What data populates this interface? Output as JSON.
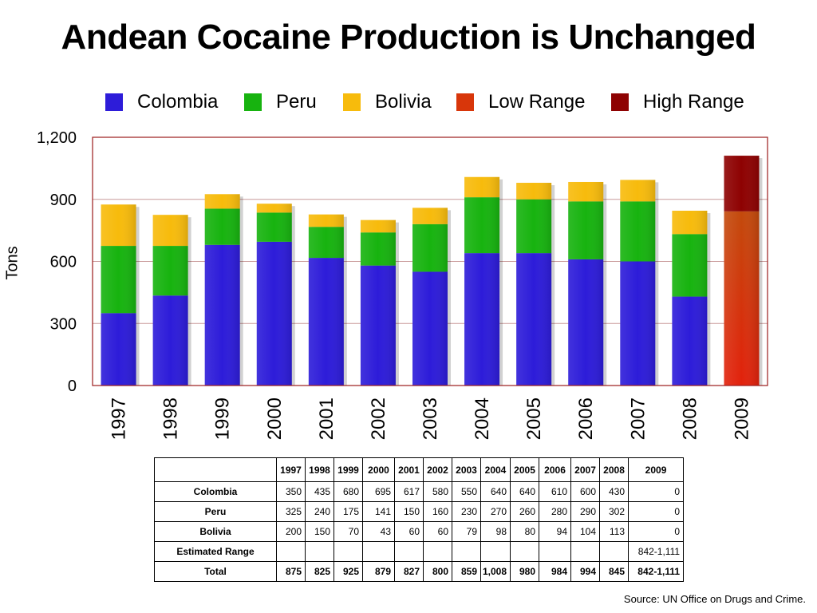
{
  "title": "Andean Cocaine Production is Unchanged",
  "colors": {
    "colombia": "#2d1cd9",
    "peru": "#17b30f",
    "bolivia": "#f7bb0c",
    "low_range": "#d8360a",
    "high_range": "#8e0202",
    "plot_border": "#9b1c1c",
    "grid": "#c99a9a"
  },
  "chart_data": {
    "type": "bar",
    "stacked": true,
    "title": "Andean Cocaine Production is Unchanged",
    "xlabel": "",
    "ylabel": "Tons",
    "ylim": [
      0,
      1200
    ],
    "yticks": [
      "0",
      "300",
      "600",
      "900",
      "1,200"
    ],
    "ytick_values": [
      0,
      300,
      600,
      900,
      1200
    ],
    "grid": true,
    "legend_position": "top",
    "categories": [
      "1997",
      "1998",
      "1999",
      "2000",
      "2001",
      "2002",
      "2003",
      "2004",
      "2005",
      "2006",
      "2007",
      "2008",
      "2009"
    ],
    "series": [
      {
        "name": "Colombia",
        "color": "#2d1cd9",
        "values": [
          350,
          435,
          680,
          695,
          617,
          580,
          550,
          640,
          640,
          610,
          600,
          430,
          0
        ]
      },
      {
        "name": "Peru",
        "color": "#17b30f",
        "values": [
          325,
          240,
          175,
          141,
          150,
          160,
          230,
          270,
          260,
          280,
          290,
          302,
          0
        ]
      },
      {
        "name": "Bolivia",
        "color": "#f7bb0c",
        "values": [
          200,
          150,
          70,
          43,
          60,
          60,
          79,
          98,
          80,
          94,
          104,
          113,
          0
        ]
      },
      {
        "name": "Low Range",
        "color": "#d8360a",
        "values": [
          0,
          0,
          0,
          0,
          0,
          0,
          0,
          0,
          0,
          0,
          0,
          0,
          842
        ]
      },
      {
        "name": "High Range",
        "color": "#8e0202",
        "values": [
          0,
          0,
          0,
          0,
          0,
          0,
          0,
          0,
          0,
          0,
          0,
          0,
          269
        ]
      }
    ]
  },
  "table": {
    "header": [
      "",
      "1997",
      "1998",
      "1999",
      "2000",
      "2001",
      "2002",
      "2003",
      "2004",
      "2005",
      "2006",
      "2007",
      "2008",
      "2009"
    ],
    "rows": [
      {
        "label": "Colombia",
        "cells": [
          "350",
          "435",
          "680",
          "695",
          "617",
          "580",
          "550",
          "640",
          "640",
          "610",
          "600",
          "430",
          "0"
        ]
      },
      {
        "label": "Peru",
        "cells": [
          "325",
          "240",
          "175",
          "141",
          "150",
          "160",
          "230",
          "270",
          "260",
          "280",
          "290",
          "302",
          "0"
        ]
      },
      {
        "label": "Bolivia",
        "cells": [
          "200",
          "150",
          "70",
          "43",
          "60",
          "60",
          "79",
          "98",
          "80",
          "94",
          "104",
          "113",
          "0"
        ]
      },
      {
        "label": "Estimated Range",
        "cells": [
          "",
          "",
          "",
          "",
          "",
          "",
          "",
          "",
          "",
          "",
          "",
          "",
          "842-1,111"
        ]
      },
      {
        "label": "Total",
        "cells": [
          "875",
          "825",
          "925",
          "879",
          "827",
          "800",
          "859",
          "1,008",
          "980",
          "984",
          "994",
          "845",
          "842-1,111"
        ]
      }
    ]
  },
  "source": "Source: UN Office on Drugs and Crime."
}
